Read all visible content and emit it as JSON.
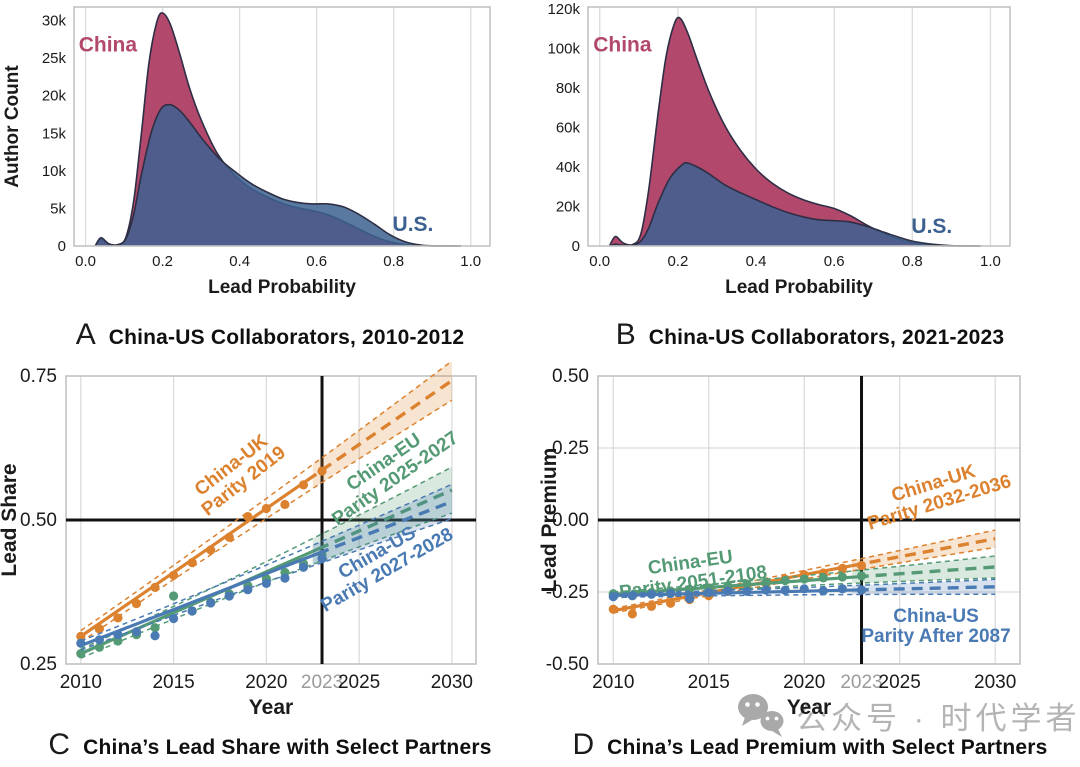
{
  "colors": {
    "china_red": "#b2486c",
    "us_blue": "#3c6191",
    "outline": "#2e2e44",
    "uk_orange": "#dc822f",
    "eu_green": "#549a74",
    "us_trend_blue": "#4a7ab3",
    "grid": "#dcdcdc",
    "frame": "#c3c3c3",
    "axis_text": "#1b1b1b",
    "muted_tick": "#9a9a9a",
    "ref_black": "#111111",
    "watermark_gray": "#b4b4b4"
  },
  "watermark": {
    "text": "公众号 · 时代学者"
  },
  "chart_data": [
    {
      "panel_letter": "A",
      "type": "area",
      "title": "China-US Collaborators, 2010-2012",
      "xlabel": "Lead Probability",
      "ylabel": "Author Count",
      "margin_left": 74,
      "margin_right": 50,
      "xlim": [
        -0.03,
        1.05
      ],
      "ylim": [
        0,
        31800
      ],
      "xticks": [
        0,
        0.2,
        0.4,
        0.6,
        0.8,
        1.0
      ],
      "xtick_labels": [
        "0.0",
        "0.2",
        "0.4",
        "0.6",
        "0.8",
        "1.0"
      ],
      "yticks": [
        0,
        5000,
        10000,
        15000,
        20000,
        25000,
        30000
      ],
      "ytick_labels": [
        "0",
        "5k",
        "10k",
        "15k",
        "20k",
        "25k",
        "30k"
      ],
      "series": [
        {
          "name": "China",
          "color_key": "china_red",
          "fill_opacity": 1,
          "label": "China",
          "label_at": [
            0.058,
            26800
          ],
          "points": [
            [
              0.025,
              0
            ],
            [
              0.04,
              900
            ],
            [
              0.06,
              250
            ],
            [
              0.085,
              150
            ],
            [
              0.105,
              1200
            ],
            [
              0.125,
              6000
            ],
            [
              0.145,
              15000
            ],
            [
              0.165,
              24500
            ],
            [
              0.185,
              29800
            ],
            [
              0.2,
              31000
            ],
            [
              0.22,
              29500
            ],
            [
              0.245,
              25500
            ],
            [
              0.27,
              21000
            ],
            [
              0.3,
              16800
            ],
            [
              0.34,
              12500
            ],
            [
              0.38,
              9800
            ],
            [
              0.42,
              8000
            ],
            [
              0.46,
              6800
            ],
            [
              0.5,
              5900
            ],
            [
              0.54,
              5200
            ],
            [
              0.58,
              4800
            ],
            [
              0.62,
              4300
            ],
            [
              0.66,
              3500
            ],
            [
              0.7,
              2500
            ],
            [
              0.74,
              1500
            ],
            [
              0.78,
              700
            ],
            [
              0.82,
              250
            ],
            [
              0.86,
              60
            ],
            [
              0.9,
              10
            ],
            [
              0.975,
              5
            ]
          ]
        },
        {
          "name": "U.S.",
          "color_key": "us_blue",
          "fill_opacity": 0.85,
          "label": "U.S.",
          "label_at": [
            0.85,
            2900
          ],
          "points": [
            [
              0.025,
              0
            ],
            [
              0.04,
              1100
            ],
            [
              0.06,
              300
            ],
            [
              0.085,
              200
            ],
            [
              0.105,
              1000
            ],
            [
              0.125,
              4200
            ],
            [
              0.145,
              9500
            ],
            [
              0.17,
              15000
            ],
            [
              0.195,
              18200
            ],
            [
              0.22,
              18800
            ],
            [
              0.245,
              18000
            ],
            [
              0.27,
              16500
            ],
            [
              0.31,
              13800
            ],
            [
              0.35,
              11500
            ],
            [
              0.39,
              9800
            ],
            [
              0.43,
              8300
            ],
            [
              0.47,
              7200
            ],
            [
              0.51,
              6300
            ],
            [
              0.55,
              5800
            ],
            [
              0.59,
              5600
            ],
            [
              0.63,
              5600
            ],
            [
              0.67,
              5200
            ],
            [
              0.71,
              4200
            ],
            [
              0.75,
              2900
            ],
            [
              0.79,
              1500
            ],
            [
              0.83,
              550
            ],
            [
              0.87,
              120
            ],
            [
              0.91,
              15
            ],
            [
              0.975,
              5
            ]
          ]
        }
      ]
    },
    {
      "panel_letter": "B",
      "type": "area",
      "title": "China-US Collaborators, 2021-2023",
      "xlabel": "Lead Probability",
      "ylabel": "Author Count",
      "margin_left": 48,
      "margin_right": 70,
      "xlim": [
        -0.03,
        1.05
      ],
      "ylim": [
        0,
        121000
      ],
      "xticks": [
        0,
        0.2,
        0.4,
        0.6,
        0.8,
        1.0
      ],
      "xtick_labels": [
        "0.0",
        "0.2",
        "0.4",
        "0.6",
        "0.8",
        "1.0"
      ],
      "yticks": [
        0,
        20000,
        40000,
        60000,
        80000,
        100000,
        120000
      ],
      "ytick_labels": [
        "0",
        "20k",
        "40k",
        "60k",
        "80k",
        "100k",
        "120k"
      ],
      "series": [
        {
          "name": "China",
          "color_key": "china_red",
          "fill_opacity": 1,
          "label": "China",
          "label_at": [
            0.058,
            102000
          ],
          "points": [
            [
              0.025,
              0
            ],
            [
              0.04,
              4800
            ],
            [
              0.06,
              1500
            ],
            [
              0.085,
              800
            ],
            [
              0.105,
              6000
            ],
            [
              0.125,
              28000
            ],
            [
              0.15,
              68000
            ],
            [
              0.17,
              96000
            ],
            [
              0.19,
              112000
            ],
            [
              0.205,
              115500
            ],
            [
              0.225,
              108000
            ],
            [
              0.25,
              94000
            ],
            [
              0.28,
              78000
            ],
            [
              0.32,
              61000
            ],
            [
              0.36,
              48500
            ],
            [
              0.4,
              39000
            ],
            [
              0.44,
              32000
            ],
            [
              0.48,
              27000
            ],
            [
              0.52,
              23500
            ],
            [
              0.56,
              21000
            ],
            [
              0.6,
              19000
            ],
            [
              0.64,
              15500
            ],
            [
              0.68,
              11000
            ],
            [
              0.72,
              7000
            ],
            [
              0.76,
              3800
            ],
            [
              0.8,
              1600
            ],
            [
              0.85,
              400
            ],
            [
              0.9,
              50
            ],
            [
              0.975,
              10
            ]
          ]
        },
        {
          "name": "U.S.",
          "color_key": "us_blue",
          "fill_opacity": 0.85,
          "label": "U.S.",
          "label_at": [
            0.85,
            10000
          ],
          "points": [
            [
              0.025,
              0
            ],
            [
              0.04,
              900
            ],
            [
              0.06,
              400
            ],
            [
              0.085,
              500
            ],
            [
              0.105,
              2500
            ],
            [
              0.125,
              9000
            ],
            [
              0.15,
              22000
            ],
            [
              0.18,
              34500
            ],
            [
              0.21,
              41000
            ],
            [
              0.225,
              42000
            ],
            [
              0.25,
              40000
            ],
            [
              0.28,
              36500
            ],
            [
              0.32,
              31000
            ],
            [
              0.36,
              27000
            ],
            [
              0.4,
              23500
            ],
            [
              0.44,
              20000
            ],
            [
              0.48,
              17000
            ],
            [
              0.52,
              14800
            ],
            [
              0.56,
              13300
            ],
            [
              0.6,
              12800
            ],
            [
              0.64,
              12200
            ],
            [
              0.68,
              10200
            ],
            [
              0.72,
              7500
            ],
            [
              0.76,
              4800
            ],
            [
              0.8,
              2500
            ],
            [
              0.85,
              900
            ],
            [
              0.9,
              150
            ],
            [
              0.975,
              10
            ]
          ]
        }
      ]
    },
    {
      "panel_letter": "C",
      "type": "line",
      "title": "China’s Lead Share with Select Partners",
      "xlabel": "Year",
      "ylabel": "Lead Share",
      "margin_left": 66,
      "margin_right": 64,
      "xlim": [
        2009.2,
        2031.3
      ],
      "ylim": [
        0.25,
        0.75
      ],
      "grid_years": [
        2010,
        2015,
        2020,
        2025,
        2030
      ],
      "xticks": [
        {
          "v": 2010,
          "label": "2010"
        },
        {
          "v": 2015,
          "label": "2015"
        },
        {
          "v": 2020,
          "label": "2020"
        },
        {
          "v": 2023,
          "label": "2023",
          "muted": true
        },
        {
          "v": 2025,
          "label": "2025"
        },
        {
          "v": 2030,
          "label": "2030"
        }
      ],
      "yticks": [
        {
          "v": 0.25,
          "label": "0.25"
        },
        {
          "v": 0.5,
          "label": "0.50"
        },
        {
          "v": 0.75,
          "label": "0.75"
        }
      ],
      "ref_x": 2023,
      "ref_y": 0.5,
      "years": [
        2010,
        2011,
        2012,
        2013,
        2014,
        2015,
        2016,
        2017,
        2018,
        2019,
        2020,
        2021,
        2022,
        2023
      ],
      "series": [
        {
          "name": "China-UK",
          "color_key": "uk_orange",
          "label_lines": [
            "China-UK",
            "Parity 2019"
          ],
          "label_year": 2018.4,
          "label_value": 0.583,
          "label_rotation": -38,
          "values": [
            0.298,
            0.311,
            0.33,
            0.355,
            0.383,
            0.404,
            0.426,
            0.448,
            0.47,
            0.506,
            0.52,
            0.527,
            0.561,
            0.585
          ],
          "trend_y2010": 0.298,
          "trend_y2030": 0.742,
          "solid_until": 2022.2,
          "band_start": 0.01,
          "band_end": 0.034,
          "band_fill_from": 2022.5
        },
        {
          "name": "China-EU",
          "color_key": "eu_green",
          "label_lines": [
            "China-EU",
            "Parity 2025-2027"
          ],
          "label_year": 2026.6,
          "label_value": 0.588,
          "label_rotation": -35,
          "values": [
            0.268,
            0.279,
            0.29,
            0.301,
            0.313,
            0.368,
            0.342,
            0.357,
            0.372,
            0.386,
            0.398,
            0.409,
            0.424,
            0.44
          ],
          "trend_y2010": 0.268,
          "trend_y2030": 0.552,
          "solid_until": 2022.8,
          "band_start": 0.008,
          "band_end": 0.04,
          "band_fill_from": 2022.5
        },
        {
          "name": "China-US",
          "color_key": "us_trend_blue",
          "label_lines": [
            "China-US",
            "Parity 2027-2028"
          ],
          "label_year": 2026.2,
          "label_value": 0.43,
          "label_rotation": -30,
          "values": [
            0.286,
            0.292,
            0.301,
            0.306,
            0.299,
            0.329,
            0.342,
            0.356,
            0.368,
            0.379,
            0.39,
            0.399,
            0.418,
            0.433
          ],
          "trend_y2010": 0.282,
          "trend_y2030": 0.532,
          "solid_until": 2022.8,
          "band_start": 0.008,
          "band_end": 0.03,
          "band_fill_from": 2022.5
        }
      ]
    },
    {
      "panel_letter": "D",
      "type": "line",
      "title": "China’s Lead Premium with Select Partners",
      "xlabel": "Year",
      "ylabel": "Lead Premium",
      "margin_left": 58,
      "margin_right": 60,
      "xlim": [
        2009.2,
        2031.3
      ],
      "ylim": [
        -0.5,
        0.5
      ],
      "grid_years": [
        2010,
        2015,
        2020,
        2025,
        2030
      ],
      "xticks": [
        {
          "v": 2010,
          "label": "2010"
        },
        {
          "v": 2015,
          "label": "2015"
        },
        {
          "v": 2020,
          "label": "2020"
        },
        {
          "v": 2023,
          "label": "2023",
          "muted": true
        },
        {
          "v": 2025,
          "label": "2025"
        },
        {
          "v": 2030,
          "label": "2030"
        }
      ],
      "yticks": [
        {
          "v": -0.5,
          "label": "-0.50"
        },
        {
          "v": -0.25,
          "label": "-0.25"
        },
        {
          "v": 0,
          "label": "0.00"
        },
        {
          "v": 0.25,
          "label": "0.25"
        },
        {
          "v": 0.5,
          "label": "0.50"
        }
      ],
      "ref_x": 2023,
      "ref_y": 0,
      "years": [
        2010,
        2011,
        2012,
        2013,
        2014,
        2015,
        2016,
        2017,
        2018,
        2019,
        2020,
        2021,
        2022,
        2023
      ],
      "series": [
        {
          "name": "China-UK",
          "color_key": "uk_orange",
          "label_lines": [
            "China-UK",
            "Parity 2032-2036"
          ],
          "label_year": 2026.9,
          "label_value": 0.098,
          "label_rotation": -17,
          "values": [
            -0.31,
            -0.326,
            -0.3,
            -0.289,
            -0.276,
            -0.263,
            -0.248,
            -0.235,
            -0.221,
            -0.205,
            -0.19,
            -0.184,
            -0.168,
            -0.158
          ],
          "trend_y2010": -0.315,
          "trend_y2030": -0.065,
          "solid_until": 2022.5,
          "band_start": 0.008,
          "band_end": 0.03,
          "band_fill_from": 2022.5
        },
        {
          "name": "China-EU",
          "color_key": "eu_green",
          "label_lines": [
            "China-EU",
            "Parity 2051-2108"
          ],
          "label_year": 2014.1,
          "label_value": -0.178,
          "label_rotation": -8,
          "values": [
            -0.256,
            -0.263,
            -0.252,
            -0.247,
            -0.241,
            -0.236,
            -0.229,
            -0.222,
            -0.216,
            -0.21,
            -0.205,
            -0.201,
            -0.198,
            -0.194
          ],
          "trend_y2010": -0.258,
          "trend_y2030": -0.163,
          "solid_until": 2022.8,
          "band_start": 0.008,
          "band_end": 0.038,
          "band_fill_from": 2022.5
        },
        {
          "name": "China-US",
          "color_key": "us_trend_blue",
          "label_lines": [
            "China-US",
            "Parity After 2087"
          ],
          "label_year": 2026.9,
          "label_value": -0.364,
          "label_rotation": 0,
          "values": [
            -0.266,
            -0.262,
            -0.258,
            -0.255,
            -0.273,
            -0.252,
            -0.247,
            -0.248,
            -0.243,
            -0.244,
            -0.239,
            -0.246,
            -0.239,
            -0.243
          ],
          "trend_y2010": -0.262,
          "trend_y2030": -0.232,
          "solid_until": 2022.8,
          "band_start": 0.007,
          "band_end": 0.026,
          "band_fill_from": 2022.5
        }
      ]
    }
  ]
}
